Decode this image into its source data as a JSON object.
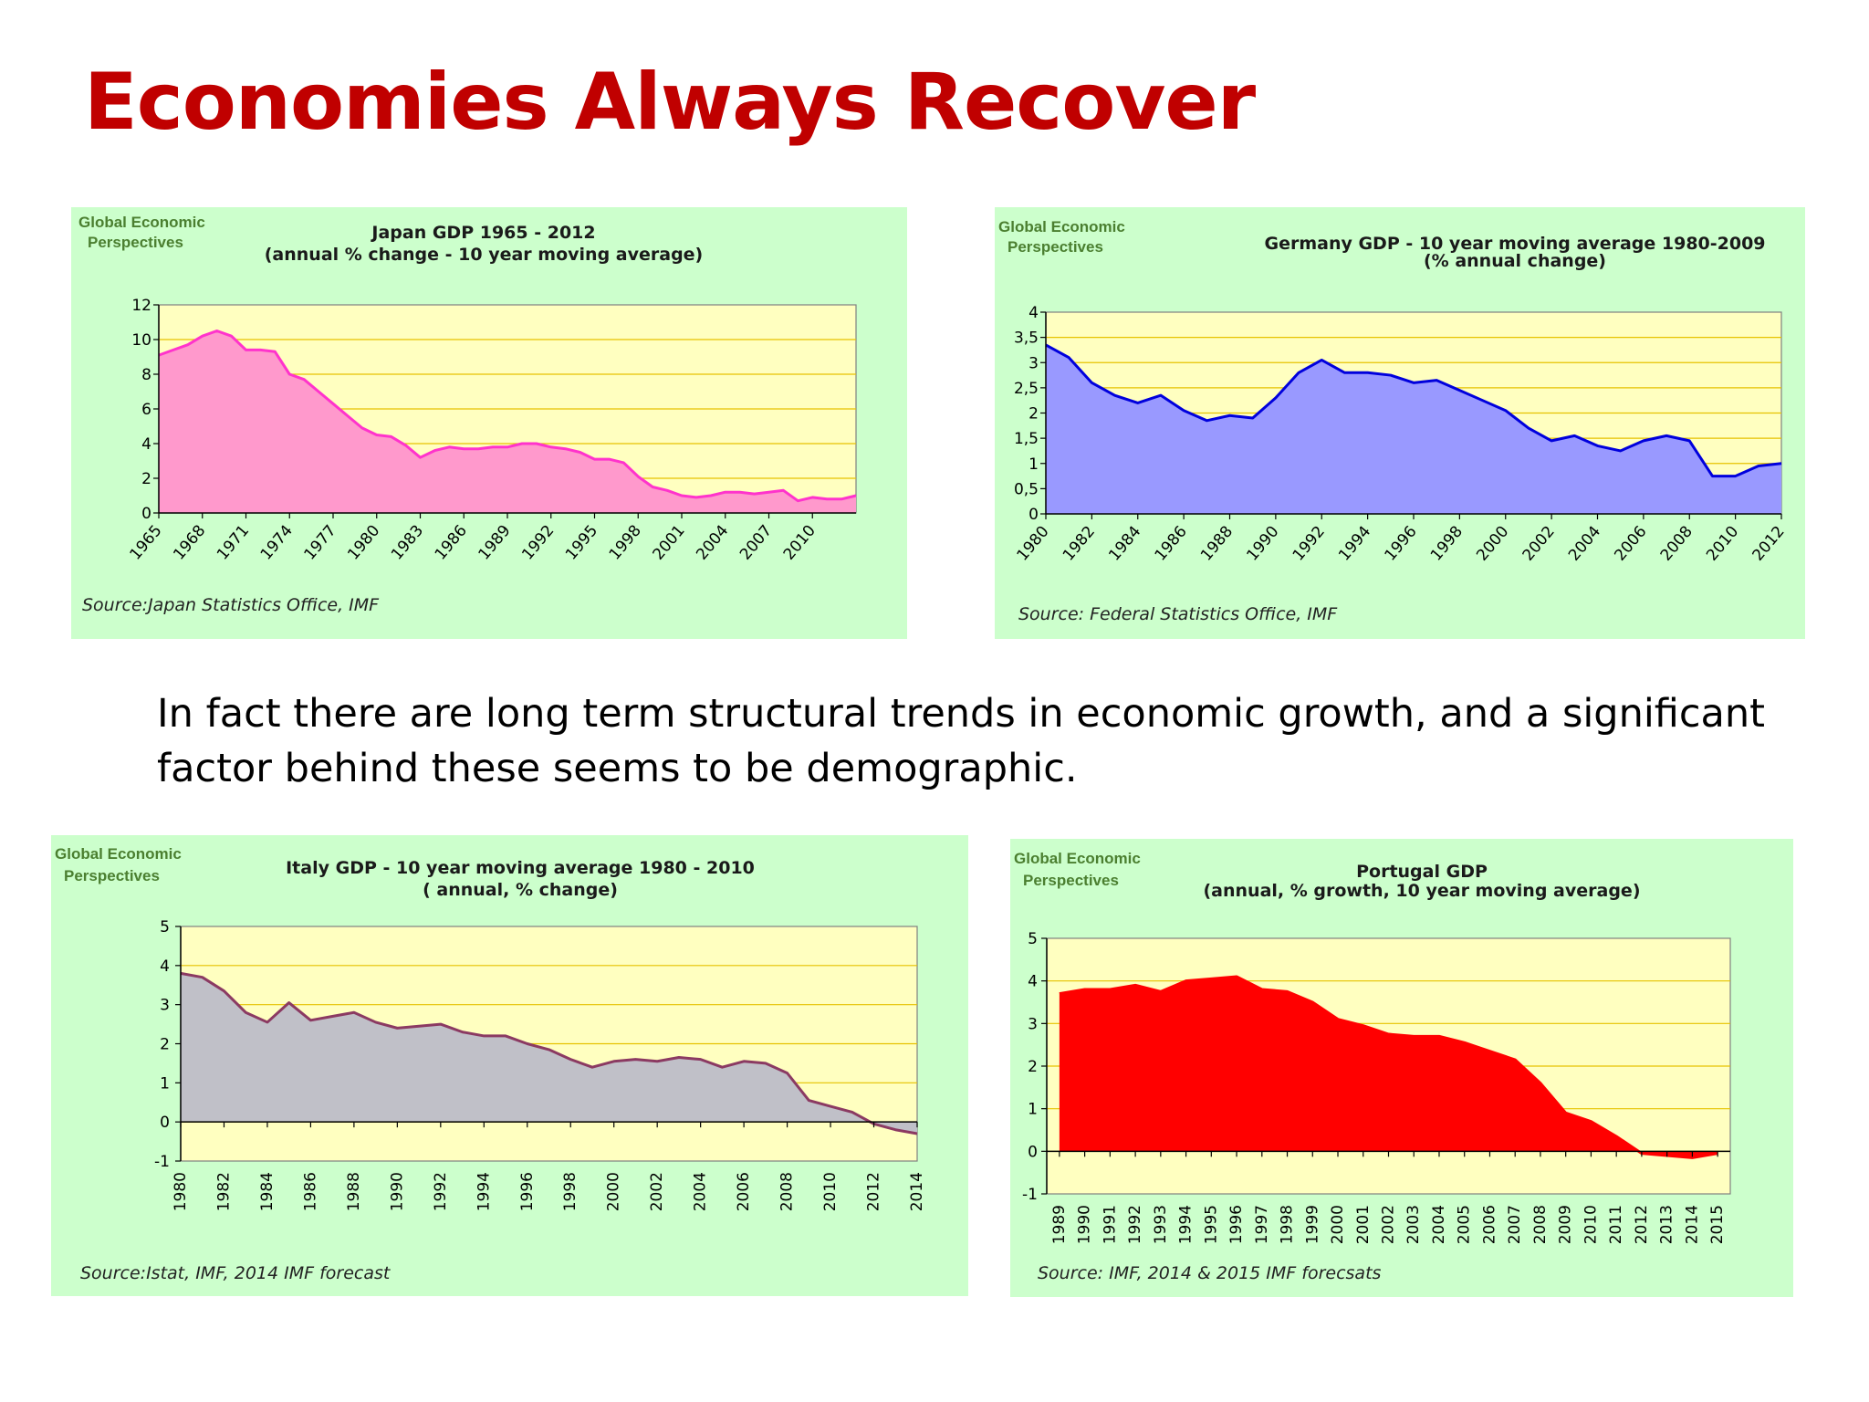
{
  "slide": {
    "title": "Economies Always Recover",
    "body": "In fact there are long term structural trends in economic growth, and a significant factor behind these seems to be demographic."
  },
  "colors": {
    "title": "#c00000",
    "panel_bg": "#ccffcc",
    "plot_bg": "#ffffc0",
    "gridline": "#e6c200",
    "brand_text": "#4b7f30"
  },
  "chart_data": [
    {
      "type": "area",
      "brand": [
        "Global Economic",
        "Perspectives"
      ],
      "title": [
        "Japan GDP 1965 -  2012",
        "(annual % change - 10 year moving average)"
      ],
      "source": "Source:Japan Statistics Office, IMF",
      "fill": "#ff99cc",
      "stroke": "#ff33cc",
      "ylim": [
        0,
        12
      ],
      "yticks": [
        0,
        2,
        4,
        6,
        8,
        10,
        12
      ],
      "xlim": [
        1965,
        2013
      ],
      "xticks": [
        1965,
        1968,
        1971,
        1974,
        1977,
        1980,
        1983,
        1986,
        1989,
        1992,
        1995,
        1998,
        2001,
        2004,
        2007,
        2010
      ],
      "x": [
        1965,
        1966,
        1967,
        1968,
        1969,
        1970,
        1971,
        1972,
        1973,
        1974,
        1975,
        1976,
        1977,
        1978,
        1979,
        1980,
        1981,
        1982,
        1983,
        1984,
        1985,
        1986,
        1987,
        1988,
        1989,
        1990,
        1991,
        1992,
        1993,
        1994,
        1995,
        1996,
        1997,
        1998,
        1999,
        2000,
        2001,
        2002,
        2003,
        2004,
        2005,
        2006,
        2007,
        2008,
        2009,
        2010,
        2011,
        2012,
        2013
      ],
      "y": [
        9.1,
        9.4,
        9.7,
        10.2,
        10.5,
        10.2,
        9.4,
        9.4,
        9.3,
        8.0,
        7.7,
        7.0,
        6.3,
        5.6,
        4.9,
        4.5,
        4.4,
        3.9,
        3.2,
        3.6,
        3.8,
        3.7,
        3.7,
        3.8,
        3.8,
        4.0,
        4.0,
        3.8,
        3.7,
        3.5,
        3.1,
        3.1,
        2.9,
        2.1,
        1.5,
        1.3,
        1.0,
        0.9,
        1.0,
        1.2,
        1.2,
        1.1,
        1.2,
        1.3,
        0.7,
        0.9,
        0.8,
        0.8,
        1.0
      ]
    },
    {
      "type": "area",
      "brand": [
        "Global Economic",
        "Perspectives"
      ],
      "title": [
        "Germany  GDP - 10 year moving average 1980-2009",
        "(% annual change)"
      ],
      "source": "Source: Federal Statistics Office, IMF",
      "fill": "#9999ff",
      "stroke": "#0000dd",
      "ylim": [
        0,
        4
      ],
      "yticks": [
        0,
        0.5,
        1,
        1.5,
        2,
        2.5,
        3,
        3.5,
        4
      ],
      "ytick_labels": [
        "0",
        "0,5",
        "1",
        "1,5",
        "2",
        "2,5",
        "3",
        "3,5",
        "4"
      ],
      "xlim": [
        1980,
        2012
      ],
      "xticks": [
        1980,
        1982,
        1984,
        1986,
        1988,
        1990,
        1992,
        1994,
        1996,
        1998,
        2000,
        2002,
        2004,
        2006,
        2008,
        2010,
        2012
      ],
      "x": [
        1980,
        1981,
        1982,
        1983,
        1984,
        1985,
        1986,
        1987,
        1988,
        1989,
        1990,
        1991,
        1992,
        1993,
        1994,
        1995,
        1996,
        1997,
        1998,
        1999,
        2000,
        2001,
        2002,
        2003,
        2004,
        2005,
        2006,
        2007,
        2008,
        2009,
        2010,
        2011,
        2012
      ],
      "y": [
        3.35,
        3.1,
        2.6,
        2.35,
        2.2,
        2.35,
        2.05,
        1.85,
        1.95,
        1.9,
        2.3,
        2.8,
        3.05,
        2.8,
        2.8,
        2.75,
        2.6,
        2.65,
        2.45,
        2.25,
        2.05,
        1.7,
        1.45,
        1.55,
        1.35,
        1.25,
        1.45,
        1.55,
        1.45,
        0.75,
        0.75,
        0.95,
        1.0
      ]
    },
    {
      "type": "area",
      "brand": [
        "Global Economic",
        "Perspectives"
      ],
      "title": [
        "Italy GDP  - 10 year moving average 1980 - 2010",
        "( annual, % change)"
      ],
      "source": "Source:Istat, IMF, 2014 IMF forecast",
      "fill": "#c0c0c8",
      "stroke": "#8b3a62",
      "ylim": [
        -1,
        5
      ],
      "yticks": [
        -1,
        0,
        1,
        2,
        3,
        4,
        5
      ],
      "xlim": [
        1980,
        2014
      ],
      "xticks": [
        1980,
        1982,
        1984,
        1986,
        1988,
        1990,
        1992,
        1994,
        1996,
        1998,
        2000,
        2002,
        2004,
        2006,
        2008,
        2010,
        2012,
        2014
      ],
      "x": [
        1980,
        1981,
        1982,
        1983,
        1984,
        1985,
        1986,
        1987,
        1988,
        1989,
        1990,
        1991,
        1992,
        1993,
        1994,
        1995,
        1996,
        1997,
        1998,
        1999,
        2000,
        2001,
        2002,
        2003,
        2004,
        2005,
        2006,
        2007,
        2008,
        2009,
        2010,
        2011,
        2012,
        2013,
        2014
      ],
      "y": [
        3.8,
        3.7,
        3.35,
        2.8,
        2.55,
        3.05,
        2.6,
        2.7,
        2.8,
        2.55,
        2.4,
        2.45,
        2.5,
        2.3,
        2.2,
        2.2,
        2.0,
        1.85,
        1.6,
        1.4,
        1.55,
        1.6,
        1.55,
        1.65,
        1.6,
        1.4,
        1.55,
        1.5,
        1.25,
        0.55,
        0.4,
        0.25,
        -0.05,
        -0.2,
        -0.3
      ]
    },
    {
      "type": "area",
      "brand": [
        "Global Economic",
        "Perspectives"
      ],
      "title": [
        "Portugal GDP",
        "(annual, % growth, 10 year moving average)"
      ],
      "source": "Source: IMF, 2014 & 2015 IMF forecsats",
      "fill": "#ff0000",
      "stroke": "#ff0000",
      "ylim": [
        -1,
        5
      ],
      "yticks": [
        -1,
        0,
        1,
        2,
        3,
        4,
        5
      ],
      "xlim": [
        1988.5,
        2015.5
      ],
      "xticks": [
        1989,
        1990,
        1991,
        1992,
        1993,
        1994,
        1995,
        1996,
        1997,
        1998,
        1999,
        2000,
        2001,
        2002,
        2003,
        2004,
        2005,
        2006,
        2007,
        2008,
        2009,
        2010,
        2011,
        2012,
        2013,
        2014,
        2015
      ],
      "x": [
        1989,
        1990,
        1991,
        1992,
        1993,
        1994,
        1995,
        1996,
        1997,
        1998,
        1999,
        2000,
        2001,
        2002,
        2003,
        2004,
        2005,
        2006,
        2007,
        2008,
        2009,
        2010,
        2011,
        2012,
        2013,
        2014,
        2015
      ],
      "y": [
        3.7,
        3.8,
        3.8,
        3.9,
        3.75,
        4.0,
        4.05,
        4.1,
        3.8,
        3.75,
        3.5,
        3.1,
        2.95,
        2.75,
        2.7,
        2.7,
        2.55,
        2.35,
        2.15,
        1.6,
        0.9,
        0.7,
        0.35,
        -0.05,
        -0.1,
        -0.15,
        -0.05
      ]
    }
  ]
}
